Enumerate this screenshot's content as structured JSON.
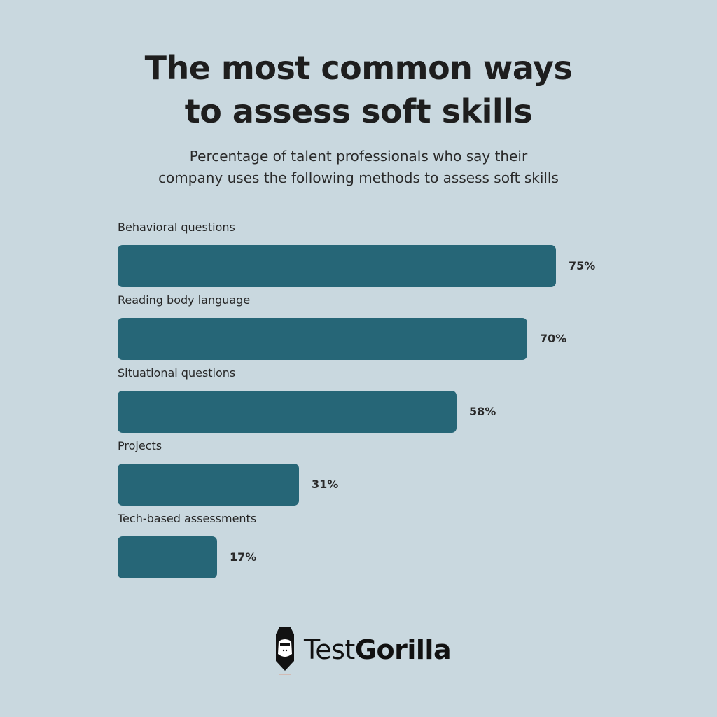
{
  "header": {
    "title_line1": "The most common ways",
    "title_line2": "to assess soft skills",
    "subtitle_line1": "Percentage of talent professionals who say their",
    "subtitle_line2": "company uses the following methods to assess soft skills"
  },
  "bars": [
    {
      "label": "Behavioral questions",
      "value": 75,
      "value_label": "75%"
    },
    {
      "label": "Reading body language",
      "value": 70,
      "value_label": "70%"
    },
    {
      "label": "Situational questions",
      "value": 58,
      "value_label": "58%"
    },
    {
      "label": "Projects",
      "value": 31,
      "value_label": "31%"
    },
    {
      "label": "Tech-based assessments",
      "value": 17,
      "value_label": "17%"
    }
  ],
  "colors": {
    "background": "#c9d8df",
    "bar": "#266677",
    "text": "#1e1e1e"
  },
  "logo": {
    "text_light": "Test",
    "text_bold": "Gorilla",
    "icon": "gorilla-pencil-icon"
  },
  "chart_data": {
    "type": "bar",
    "orientation": "horizontal",
    "title": "The most common ways to assess soft skills",
    "subtitle": "Percentage of talent professionals who say their company uses the following methods to assess soft skills",
    "categories": [
      "Behavioral questions",
      "Reading body language",
      "Situational questions",
      "Projects",
      "Tech-based assessments"
    ],
    "values": [
      75,
      70,
      58,
      31,
      17
    ],
    "unit": "%",
    "xlabel": "",
    "ylabel": "",
    "xlim": [
      0,
      100
    ],
    "grid": false,
    "legend": null
  }
}
